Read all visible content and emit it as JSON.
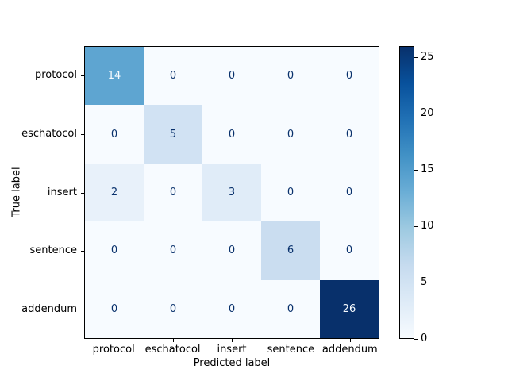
{
  "chart_data": {
    "type": "heatmap",
    "title": "",
    "xlabel": "Predicted label",
    "ylabel": "True label",
    "categories": [
      "protocol",
      "eschatocol",
      "insert",
      "sentence",
      "addendum"
    ],
    "matrix": [
      [
        14,
        0,
        0,
        0,
        0
      ],
      [
        0,
        5,
        0,
        0,
        0
      ],
      [
        2,
        0,
        3,
        0,
        0
      ],
      [
        0,
        0,
        0,
        6,
        0
      ],
      [
        0,
        0,
        0,
        0,
        26
      ]
    ],
    "vmin": 0,
    "vmax": 26,
    "colormap": "Blues",
    "colormap_anchors": [
      "#f7fbff",
      "#deebf7",
      "#c6dbef",
      "#9ecae1",
      "#6baed6",
      "#4292c6",
      "#2171b5",
      "#08519c",
      "#08306b"
    ],
    "cell_text_dark": "#08306b",
    "cell_text_light": "#f7fbff",
    "colorbar_ticks": [
      0,
      5,
      10,
      15,
      20,
      25
    ],
    "legend_position": "right-colorbar",
    "grid": false
  }
}
